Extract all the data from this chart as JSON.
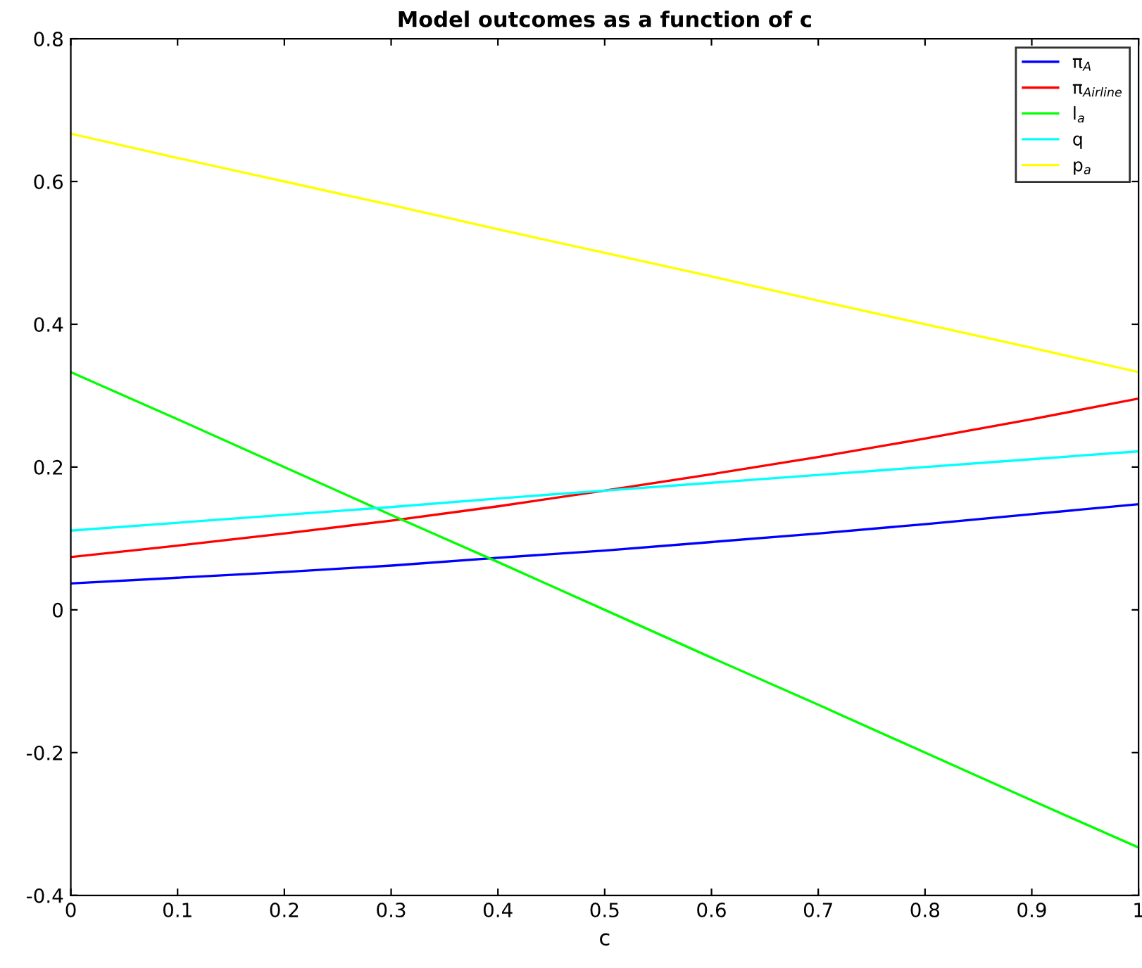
{
  "chart_data": {
    "type": "line",
    "title": "Model outcomes as a function of c",
    "xlabel": "c",
    "x": [
      0,
      0.1,
      0.2,
      0.3,
      0.4,
      0.5,
      0.6,
      0.7,
      0.8,
      0.9,
      1
    ],
    "series": [
      {
        "name": "π$_{A}$",
        "color": "#0000ff",
        "values": [
          0.037,
          0.045,
          0.053,
          0.062,
          0.073,
          0.083,
          0.095,
          0.107,
          0.12,
          0.134,
          0.148
        ]
      },
      {
        "name": "π$_{Airline}$",
        "color": "#ff0000",
        "values": [
          0.074,
          0.09,
          0.107,
          0.125,
          0.145,
          0.167,
          0.19,
          0.214,
          0.24,
          0.267,
          0.296
        ]
      },
      {
        "name": "l$_{a}$",
        "color": "#00ff00",
        "values": [
          0.333,
          0.267,
          0.2,
          0.133,
          0.067,
          0,
          -0.067,
          -0.133,
          -0.2,
          -0.267,
          -0.333
        ]
      },
      {
        "name": "q",
        "color": "#00ffff",
        "values": [
          0.111,
          0.122,
          0.133,
          0.144,
          0.156,
          0.167,
          0.178,
          0.189,
          0.2,
          0.211,
          0.222
        ]
      },
      {
        "name": "p$_{a}$",
        "color": "#ffff00",
        "values": [
          0.667,
          0.633,
          0.6,
          0.567,
          0.533,
          0.5,
          0.467,
          0.433,
          0.4,
          0.367,
          0.333
        ]
      }
    ],
    "xlim": [
      0,
      1
    ],
    "ylim": [
      -0.4,
      0.8
    ],
    "xticks": [
      0,
      0.1,
      0.2,
      0.3,
      0.4,
      0.5,
      0.6,
      0.7,
      0.8,
      0.9,
      1
    ],
    "yticks": [
      -0.4,
      -0.2,
      0,
      0.2,
      0.4,
      0.6,
      0.8
    ],
    "grid": false,
    "legend": "top right",
    "marker": "none",
    "line_style": "solid"
  }
}
